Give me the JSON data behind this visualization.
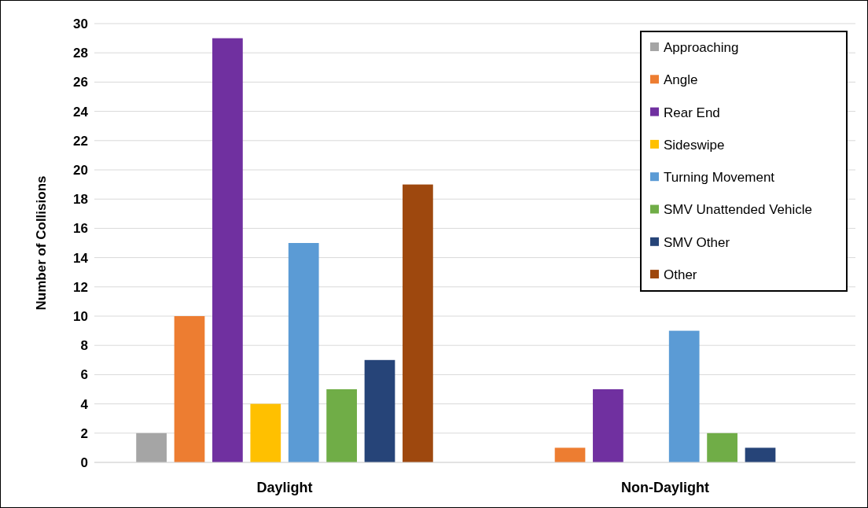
{
  "chart_data": {
    "type": "bar",
    "ylabel": "Number of Collisions",
    "categories": [
      "Daylight",
      "Non-Daylight"
    ],
    "series": [
      {
        "name": "Approaching",
        "color": "#a5a5a5",
        "values": [
          2,
          0
        ]
      },
      {
        "name": "Angle",
        "color": "#ed7d31",
        "values": [
          10,
          1
        ]
      },
      {
        "name": "Rear End",
        "color": "#7030a0",
        "values": [
          29,
          5
        ]
      },
      {
        "name": "Sideswipe",
        "color": "#ffc000",
        "values": [
          4,
          0
        ]
      },
      {
        "name": "Turning Movement",
        "color": "#5b9bd5",
        "values": [
          15,
          9
        ]
      },
      {
        "name": "SMV Unattended Vehicle",
        "color": "#70ad47",
        "values": [
          5,
          2
        ]
      },
      {
        "name": "SMV Other",
        "color": "#264478",
        "values": [
          7,
          1
        ]
      },
      {
        "name": "Other",
        "color": "#9e480e",
        "values": [
          19,
          0
        ]
      }
    ],
    "ylim": [
      0,
      30
    ],
    "yticks": [
      0,
      2,
      4,
      6,
      8,
      10,
      12,
      14,
      16,
      18,
      20,
      22,
      24,
      26,
      28,
      30
    ],
    "grid": "y",
    "legend": "top right"
  }
}
